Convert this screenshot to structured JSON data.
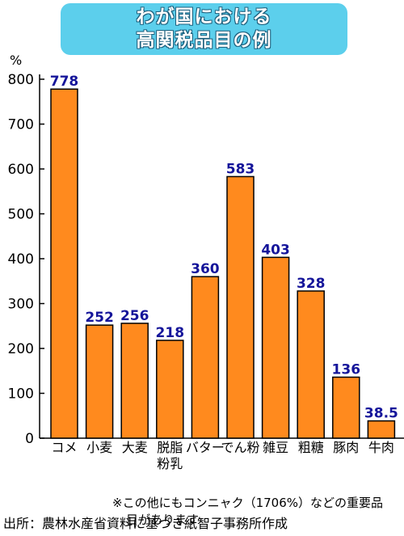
{
  "title": {
    "line1": "わが国における",
    "line2": "高関税品目の例"
  },
  "chart_data": {
    "type": "bar",
    "unit_label": "%",
    "categories": [
      [
        "コメ"
      ],
      [
        "小麦"
      ],
      [
        "大麦"
      ],
      [
        "脱脂",
        "粉乳"
      ],
      [
        "バター"
      ],
      [
        "でん粉"
      ],
      [
        "雑豆"
      ],
      [
        "粗糖"
      ],
      [
        "豚肉"
      ],
      [
        "牛肉"
      ]
    ],
    "values": [
      778,
      252,
      256,
      218,
      360,
      583,
      403,
      328,
      136,
      38.5
    ],
    "value_labels": [
      "778",
      "252",
      "256",
      "218",
      "360",
      "583",
      "403",
      "328",
      "136",
      "38.5"
    ],
    "y_ticks": [
      "0",
      "100",
      "200",
      "300",
      "400",
      "500",
      "600",
      "700",
      "800"
    ],
    "ylim": [
      0,
      800
    ],
    "bar_color": "#ff8a1e",
    "value_label_color": "#15159a"
  },
  "note": {
    "line1": "※この他にもコンニャク（1706%）などの重要品",
    "line2": "目があります"
  },
  "source": "出所：農林水産省資料に基づき紙智子事務所作成"
}
